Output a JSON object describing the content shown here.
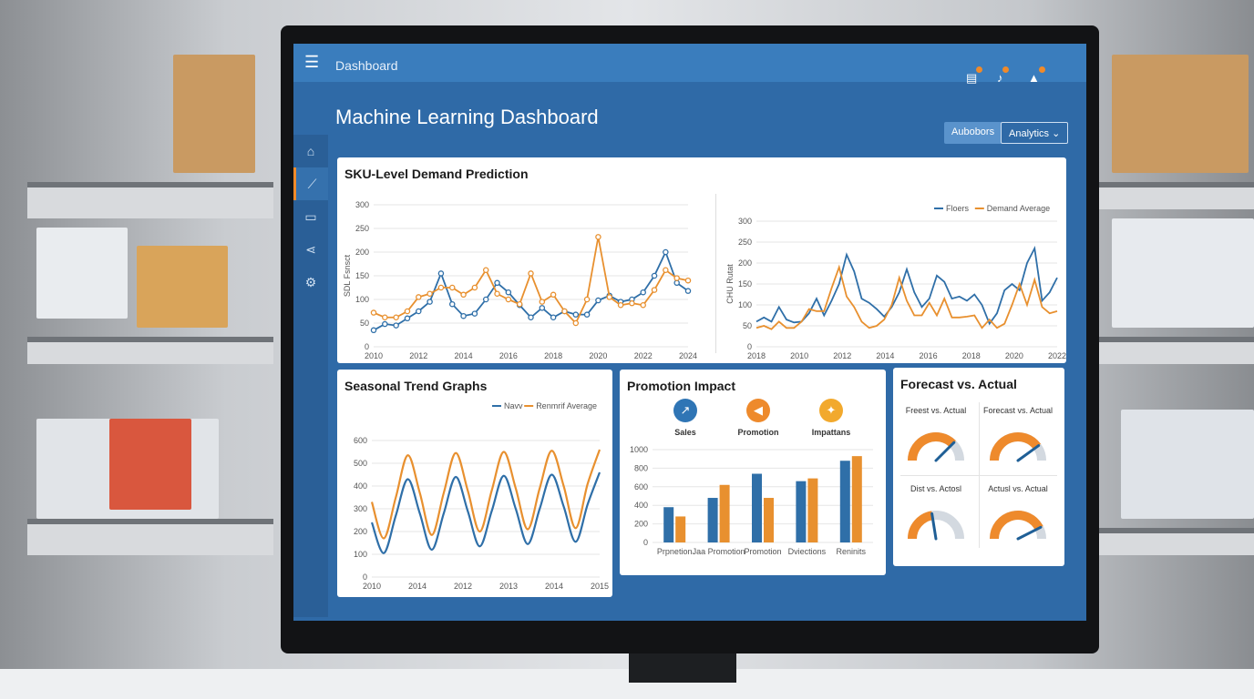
{
  "topbar": {
    "breadcrumb": "Dashboard",
    "icons": [
      "report-icon",
      "bell-icon",
      "alert-icon"
    ]
  },
  "header": {
    "title": "Machine Learning Dashboard",
    "button_1": "Aubobors",
    "button_2": "Analytics"
  },
  "sidebar": {
    "items": [
      "home-icon",
      "line-chart-icon",
      "message-icon",
      "share-icon",
      "gear-icon"
    ],
    "active": 1
  },
  "colors": {
    "blue": "#2f6fa8",
    "orange": "#e8902f",
    "frame": "#2f6aa7"
  },
  "demand": {
    "title": "SKU-Level Demand Prediction"
  },
  "chart_data": [
    {
      "type": "line",
      "title": "SKU-Level Demand Prediction",
      "ylabel": "SDL Fsnsct",
      "ylim": [
        0,
        300
      ],
      "yticks": [
        0,
        50,
        100,
        150,
        200,
        250,
        300
      ],
      "xticks": [
        "2010",
        "2012",
        "2014",
        "2016",
        "2018",
        "2020",
        "2022",
        "2024"
      ],
      "series": [
        {
          "color": "#2f6fa8",
          "values": [
            35,
            48,
            45,
            60,
            75,
            95,
            155,
            90,
            65,
            70,
            100,
            135,
            115,
            88,
            62,
            82,
            62,
            75,
            68,
            68,
            98,
            108,
            95,
            100,
            115,
            150,
            200,
            135,
            118
          ]
        },
        {
          "color": "#e8902f",
          "values": [
            72,
            62,
            62,
            75,
            105,
            112,
            125,
            125,
            110,
            125,
            162,
            112,
            100,
            90,
            155,
            95,
            110,
            75,
            50,
            100,
            232,
            105,
            88,
            92,
            88,
            120,
            162,
            145,
            140
          ]
        }
      ]
    },
    {
      "type": "line",
      "ylabel": "CHU Rutat",
      "ylim": [
        0,
        300
      ],
      "yticks": [
        0,
        50,
        100,
        150,
        200,
        250,
        300
      ],
      "xticks": [
        "2018",
        "2010",
        "2012",
        "2014",
        "2016",
        "2018",
        "2020",
        "2022"
      ],
      "legend": [
        "Floers",
        "Demand Average"
      ],
      "series": [
        {
          "name": "Floers",
          "color": "#2f6fa8",
          "values": [
            60,
            70,
            60,
            95,
            65,
            58,
            60,
            80,
            115,
            75,
            110,
            150,
            220,
            180,
            115,
            105,
            90,
            72,
            95,
            130,
            185,
            130,
            95,
            115,
            170,
            155,
            115,
            120,
            110,
            125,
            100,
            55,
            80,
            135,
            150,
            135,
            200,
            235,
            110,
            130,
            165
          ]
        },
        {
          "name": "Demand Average",
          "color": "#e8902f",
          "values": [
            45,
            50,
            42,
            60,
            45,
            45,
            60,
            90,
            85,
            85,
            140,
            190,
            120,
            95,
            60,
            45,
            50,
            65,
            100,
            165,
            110,
            75,
            75,
            105,
            75,
            115,
            70,
            70,
            72,
            75,
            45,
            65,
            45,
            55,
            100,
            150,
            100,
            160,
            95,
            80,
            85
          ]
        }
      ]
    },
    {
      "type": "line",
      "title": "Seasonal Trend Graphs",
      "ylim": [
        0,
        600
      ],
      "yticks": [
        0,
        100,
        200,
        300,
        400,
        500,
        600
      ],
      "xticks": [
        "2010",
        "2014",
        "2012",
        "2013",
        "2014",
        "2015"
      ],
      "legend": [
        "Navv",
        "Renmrif Average"
      ],
      "series": [
        {
          "name": "Navv",
          "color": "#2f6fa8",
          "values": [
            240,
            105,
            270,
            430,
            280,
            120,
            280,
            440,
            290,
            135,
            290,
            445,
            300,
            145,
            300,
            450,
            310,
            155,
            320,
            460
          ]
        },
        {
          "name": "Renmrif Average",
          "color": "#e8902f",
          "values": [
            330,
            170,
            350,
            535,
            370,
            185,
            370,
            545,
            380,
            200,
            380,
            550,
            390,
            210,
            390,
            555,
            400,
            215,
            410,
            560
          ]
        }
      ]
    },
    {
      "type": "bar",
      "title": "Promotion Impact",
      "ylim": [
        0,
        1000
      ],
      "yticks": [
        0,
        200,
        400,
        600,
        800,
        1000
      ],
      "categories": [
        "Prpnetion",
        "Jaa Promotion",
        "Promotion",
        "Dviections",
        "Reninits"
      ],
      "series": [
        {
          "color": "#2f6fa8",
          "values": [
            380,
            480,
            740,
            660,
            880
          ]
        },
        {
          "color": "#e8902f",
          "values": [
            280,
            620,
            480,
            690,
            930
          ]
        }
      ]
    }
  ],
  "promotion": {
    "title": "Promotion Impact",
    "kpis": [
      {
        "label": "Sales",
        "icon": "trend-up-icon",
        "color": "#2f75b5"
      },
      {
        "label": "Promotion",
        "icon": "megaphone-icon",
        "color": "#ee8a2c"
      },
      {
        "label": "Impattans",
        "icon": "sparkle-icon",
        "color": "#f2a92d"
      }
    ]
  },
  "forecast": {
    "title": "Forecast vs. Actual",
    "gauges": [
      {
        "label": "Freest vs. Actual",
        "value": 0.75
      },
      {
        "label": "Forecast vs. Actual",
        "value": 0.8
      },
      {
        "label": "Dist vs. Actosl",
        "value": 0.45
      },
      {
        "label": "Actusl vs. Actual",
        "value": 0.85
      }
    ]
  }
}
